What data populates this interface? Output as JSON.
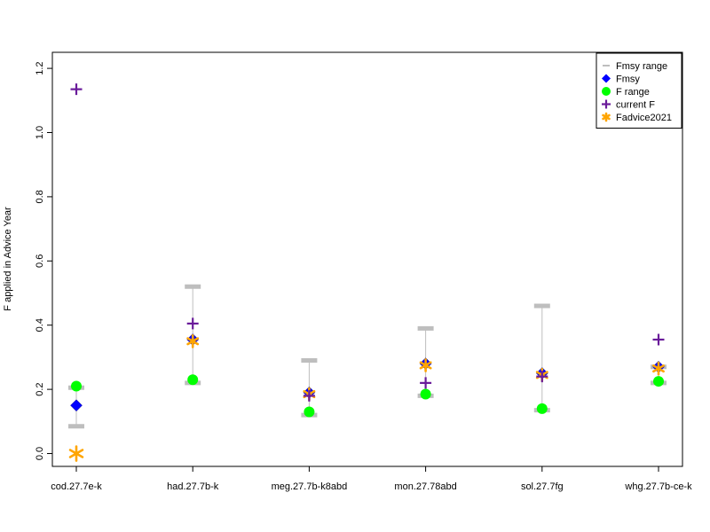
{
  "chart_data": {
    "type": "scatter",
    "ylabel": "F applied in Advice Year",
    "xlabel": "",
    "categories": [
      "cod.27.7e-k",
      "had.27.7b-k",
      "meg.27.7b-k8abd",
      "mon.27.78abd",
      "sol.27.7fg",
      "whg.27.7b-ce-k"
    ],
    "ylim": [
      -0.04,
      1.25
    ],
    "y_ticks": [
      0.0,
      0.2,
      0.4,
      0.6,
      0.8,
      1.0,
      1.2
    ],
    "y_tick_labels": [
      "0.0",
      "0.2",
      "0.4",
      "0.6",
      "0.8",
      "1.0",
      "1.2"
    ],
    "legend_position": "top-right",
    "series": [
      {
        "name": "Fmsy range",
        "marker": "range",
        "color": "#bebebe",
        "values": [
          [
            0.085,
            0.205
          ],
          [
            0.22,
            0.52
          ],
          [
            0.12,
            0.29
          ],
          [
            0.18,
            0.39
          ],
          [
            0.135,
            0.46
          ],
          [
            0.22,
            0.27
          ]
        ]
      },
      {
        "name": "Fmsy",
        "marker": "diamond",
        "color": "#0000ff",
        "values": [
          0.15,
          0.355,
          0.19,
          0.28,
          0.25,
          0.27
        ]
      },
      {
        "name": "F range",
        "marker": "circle",
        "color": "#00ff00",
        "values": [
          0.21,
          0.23,
          0.13,
          0.185,
          0.14,
          0.225
        ]
      },
      {
        "name": "current F",
        "marker": "plus",
        "color": "#6a1b9a",
        "values": [
          1.135,
          0.405,
          0.18,
          0.22,
          0.24,
          0.355
        ]
      },
      {
        "name": "Fadvice2021",
        "marker": "star",
        "color": "#ffa500",
        "values": [
          0.0,
          0.35,
          0.185,
          0.275,
          0.245,
          0.265
        ]
      }
    ]
  }
}
